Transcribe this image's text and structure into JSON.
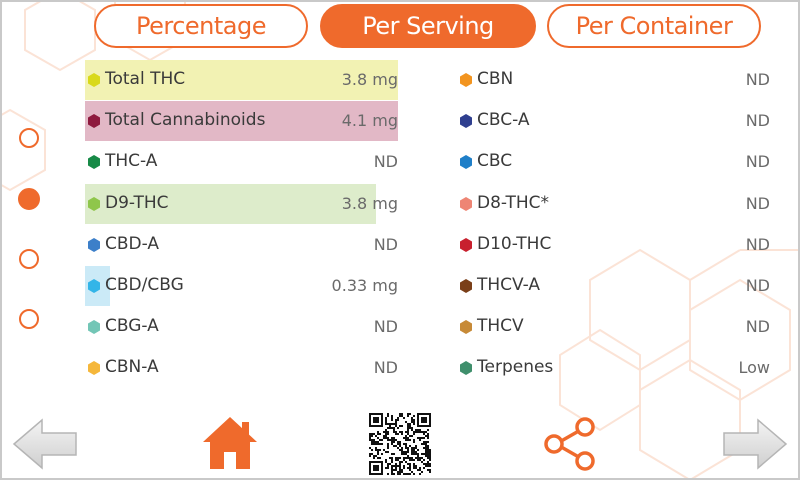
{
  "tabs": [
    {
      "label": "Percentage",
      "active": false
    },
    {
      "label": "Per Serving",
      "active": true
    },
    {
      "label": "Per Container",
      "active": false
    }
  ],
  "pager": {
    "count": 4,
    "active_index": 1
  },
  "left_column": [
    {
      "name": "Total THC",
      "value": "3.8 mg",
      "hex_color": "#d9d91a",
      "highlight_color": "#f2f2b3",
      "highlight_fraction": 1.0
    },
    {
      "name": "Total Cannabinoids",
      "value": "4.1 mg",
      "hex_color": "#8e1a3e",
      "highlight_color": "#e2b8c6",
      "highlight_fraction": 1.0
    },
    {
      "name": "THC-A",
      "value": "ND",
      "hex_color": "#178a47",
      "highlight_color": "",
      "highlight_fraction": 0
    },
    {
      "name": "D9-THC",
      "value": "3.8 mg",
      "hex_color": "#8fc64b",
      "highlight_color": "#ddeccb",
      "highlight_fraction": 0.93
    },
    {
      "name": "CBD-A",
      "value": "ND",
      "hex_color": "#3c7fc9",
      "highlight_color": "",
      "highlight_fraction": 0
    },
    {
      "name": "CBD/CBG",
      "value": "0.33 mg",
      "hex_color": "#33b5e8",
      "highlight_color": "#cbeaf7",
      "highlight_fraction": 0.08
    },
    {
      "name": "CBG-A",
      "value": "ND",
      "hex_color": "#73c6b6",
      "highlight_color": "",
      "highlight_fraction": 0
    },
    {
      "name": "CBN-A",
      "value": "ND",
      "hex_color": "#f5b73b",
      "highlight_color": "",
      "highlight_fraction": 0
    }
  ],
  "right_column": [
    {
      "name": "CBN",
      "value": "ND",
      "hex_color": "#f2941f"
    },
    {
      "name": "CBC-A",
      "value": "ND",
      "hex_color": "#2f3f8f"
    },
    {
      "name": "CBC",
      "value": "ND",
      "hex_color": "#1f7fc8"
    },
    {
      "name": "D8-THC*",
      "value": "ND",
      "hex_color": "#ee8574"
    },
    {
      "name": "D10-THC",
      "value": "ND",
      "hex_color": "#c8202e"
    },
    {
      "name": "THCV-A",
      "value": "ND",
      "hex_color": "#7a3f18"
    },
    {
      "name": "THCV",
      "value": "ND",
      "hex_color": "#c78a37"
    },
    {
      "name": "Terpenes",
      "value": "Low",
      "hex_color": "#3f8f6c"
    }
  ],
  "colors": {
    "accent": "#ef6a2c",
    "nav_arrow": "#dedede"
  },
  "icons": {
    "back": "left-arrow-icon",
    "home": "home-icon",
    "qr": "qr-code-icon",
    "share": "share-icon",
    "forward": "right-arrow-icon"
  }
}
